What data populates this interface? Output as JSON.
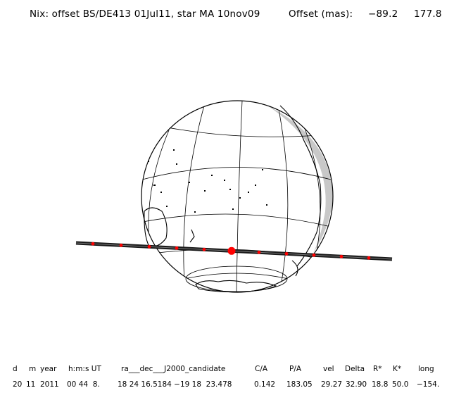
{
  "header": {
    "title": "Nix: offset BS/DE413 01Jul11, star MA 10nov09",
    "offset_label": "Offset (mas):",
    "offset_ra": "−89.2",
    "offset_dec": "177.8"
  },
  "colors": {
    "track": "#111111",
    "marker": "#ff0000",
    "shadow": "#c8c8c8",
    "grid": "#000000"
  },
  "table": {
    "headers": [
      "d",
      "m",
      "year",
      "h:m:s UT",
      "ra___dec___J2000_candidate",
      "C/A",
      "P/A",
      "vel",
      "Delta",
      "R*",
      "K*",
      "long"
    ],
    "values": [
      "20",
      "11",
      "2011",
      "00 44  8.",
      "18 24 16.5184 −19 18  23.478",
      "0.142",
      "183.05",
      "29.27",
      "32.90",
      "18.8",
      "50.0",
      "−154."
    ]
  }
}
